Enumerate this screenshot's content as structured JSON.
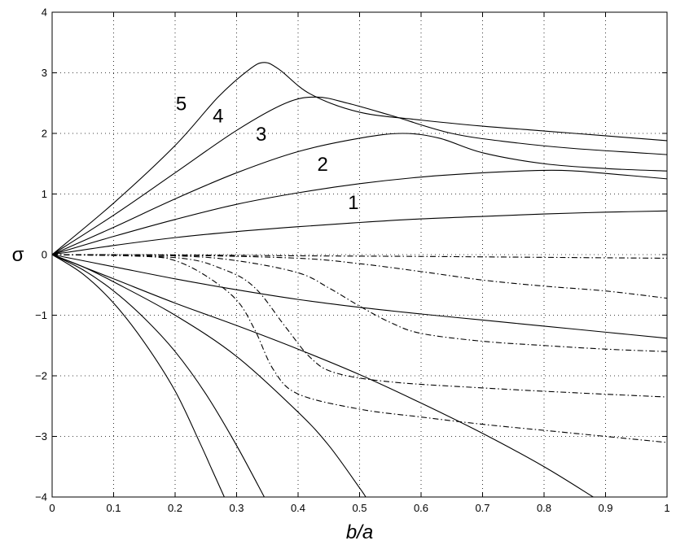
{
  "chart_data": {
    "type": "line",
    "xlabel": "b/a",
    "ylabel": "σ",
    "xlim": [
      0,
      1
    ],
    "ylim": [
      -4,
      4
    ],
    "xticks": [
      0,
      0.1,
      0.2,
      0.3,
      0.4,
      0.5,
      0.6,
      0.7,
      0.8,
      0.9,
      1
    ],
    "xtick_labels": [
      "0",
      "0.1",
      "0.2",
      "0.3",
      "0.4",
      "0.5",
      "0.6",
      "0.7",
      "0.8",
      "0.9",
      "1"
    ],
    "yticks": [
      -4,
      -3,
      -2,
      -1,
      0,
      1,
      2,
      3,
      4
    ],
    "ytick_labels": [
      "−4",
      "−3",
      "−2",
      "−1",
      "0",
      "1",
      "2",
      "3",
      "4"
    ],
    "grid": true,
    "series": [
      {
        "style": "solid",
        "points": [
          [
            0,
            0
          ],
          [
            0.1,
            0.15
          ],
          [
            0.2,
            0.28
          ],
          [
            0.3,
            0.38
          ],
          [
            0.4,
            0.46
          ],
          [
            0.5,
            0.53
          ],
          [
            0.6,
            0.59
          ],
          [
            0.7,
            0.63
          ],
          [
            0.8,
            0.67
          ],
          [
            0.9,
            0.7
          ],
          [
            1,
            0.72
          ]
        ]
      },
      {
        "style": "solid",
        "points": [
          [
            0,
            0
          ],
          [
            0.1,
            0.3
          ],
          [
            0.2,
            0.58
          ],
          [
            0.3,
            0.83
          ],
          [
            0.4,
            1.02
          ],
          [
            0.5,
            1.17
          ],
          [
            0.6,
            1.28
          ],
          [
            0.7,
            1.35
          ],
          [
            0.8,
            1.39
          ],
          [
            0.85,
            1.38
          ],
          [
            0.9,
            1.34
          ],
          [
            1,
            1.25
          ]
        ]
      },
      {
        "style": "solid",
        "points": [
          [
            0,
            0
          ],
          [
            0.1,
            0.45
          ],
          [
            0.2,
            0.92
          ],
          [
            0.3,
            1.35
          ],
          [
            0.4,
            1.7
          ],
          [
            0.5,
            1.92
          ],
          [
            0.57,
            2.0
          ],
          [
            0.63,
            1.92
          ],
          [
            0.7,
            1.68
          ],
          [
            0.8,
            1.5
          ],
          [
            0.9,
            1.42
          ],
          [
            1,
            1.38
          ]
        ]
      },
      {
        "style": "solid",
        "points": [
          [
            0,
            0
          ],
          [
            0.1,
            0.65
          ],
          [
            0.2,
            1.35
          ],
          [
            0.3,
            2.05
          ],
          [
            0.38,
            2.5
          ],
          [
            0.43,
            2.6
          ],
          [
            0.48,
            2.5
          ],
          [
            0.55,
            2.3
          ],
          [
            0.65,
            2.0
          ],
          [
            0.75,
            1.85
          ],
          [
            0.85,
            1.75
          ],
          [
            1,
            1.65
          ]
        ]
      },
      {
        "style": "solid",
        "points": [
          [
            0,
            0
          ],
          [
            0.1,
            0.85
          ],
          [
            0.2,
            1.8
          ],
          [
            0.27,
            2.6
          ],
          [
            0.32,
            3.05
          ],
          [
            0.345,
            3.17
          ],
          [
            0.37,
            3.05
          ],
          [
            0.42,
            2.65
          ],
          [
            0.5,
            2.35
          ],
          [
            0.6,
            2.22
          ],
          [
            0.7,
            2.12
          ],
          [
            0.8,
            2.04
          ],
          [
            0.9,
            1.96
          ],
          [
            1,
            1.88
          ]
        ]
      },
      {
        "style": "solid",
        "points": [
          [
            0,
            0
          ],
          [
            0.1,
            -0.2
          ],
          [
            0.2,
            -0.4
          ],
          [
            0.3,
            -0.58
          ],
          [
            0.4,
            -0.74
          ],
          [
            0.5,
            -0.87
          ],
          [
            0.6,
            -0.98
          ],
          [
            0.7,
            -1.08
          ],
          [
            0.8,
            -1.18
          ],
          [
            0.9,
            -1.28
          ],
          [
            1,
            -1.38
          ]
        ]
      },
      {
        "style": "solid",
        "points": [
          [
            0,
            0
          ],
          [
            0.1,
            -0.4
          ],
          [
            0.2,
            -0.8
          ],
          [
            0.3,
            -1.17
          ],
          [
            0.4,
            -1.56
          ],
          [
            0.5,
            -1.98
          ],
          [
            0.6,
            -2.45
          ],
          [
            0.7,
            -2.95
          ],
          [
            0.8,
            -3.5
          ],
          [
            0.88,
            -4.0
          ]
        ]
      },
      {
        "style": "solid",
        "points": [
          [
            0,
            0
          ],
          [
            0.05,
            -0.2
          ],
          [
            0.1,
            -0.45
          ],
          [
            0.2,
            -1.0
          ],
          [
            0.3,
            -1.68
          ],
          [
            0.4,
            -2.6
          ],
          [
            0.45,
            -3.15
          ],
          [
            0.5,
            -3.85
          ],
          [
            0.51,
            -4.0
          ]
        ]
      },
      {
        "style": "solid",
        "points": [
          [
            0,
            0
          ],
          [
            0.05,
            -0.25
          ],
          [
            0.1,
            -0.6
          ],
          [
            0.15,
            -1.05
          ],
          [
            0.2,
            -1.6
          ],
          [
            0.25,
            -2.3
          ],
          [
            0.3,
            -3.15
          ],
          [
            0.345,
            -4.0
          ]
        ]
      },
      {
        "style": "solid",
        "points": [
          [
            0,
            0
          ],
          [
            0.05,
            -0.32
          ],
          [
            0.1,
            -0.8
          ],
          [
            0.15,
            -1.45
          ],
          [
            0.2,
            -2.25
          ],
          [
            0.24,
            -3.1
          ],
          [
            0.26,
            -3.55
          ],
          [
            0.28,
            -4.0
          ]
        ]
      },
      {
        "style": "dashdot",
        "points": [
          [
            0,
            0
          ],
          [
            0.2,
            -0.005
          ],
          [
            0.4,
            -0.02
          ],
          [
            0.6,
            -0.03
          ],
          [
            0.8,
            -0.045
          ],
          [
            1,
            -0.06
          ]
        ]
      },
      {
        "style": "dashdot",
        "points": [
          [
            0,
            0
          ],
          [
            0.2,
            -0.01
          ],
          [
            0.4,
            -0.06
          ],
          [
            0.5,
            -0.15
          ],
          [
            0.6,
            -0.28
          ],
          [
            0.7,
            -0.42
          ],
          [
            0.8,
            -0.52
          ],
          [
            0.9,
            -0.6
          ],
          [
            1,
            -0.72
          ]
        ]
      },
      {
        "style": "dashdot",
        "points": [
          [
            0,
            0
          ],
          [
            0.2,
            -0.02
          ],
          [
            0.3,
            -0.1
          ],
          [
            0.4,
            -0.3
          ],
          [
            0.45,
            -0.55
          ],
          [
            0.5,
            -0.85
          ],
          [
            0.55,
            -1.12
          ],
          [
            0.6,
            -1.3
          ],
          [
            0.7,
            -1.43
          ],
          [
            0.8,
            -1.5
          ],
          [
            0.9,
            -1.56
          ],
          [
            1,
            -1.6
          ]
        ]
      },
      {
        "style": "dashdot",
        "points": [
          [
            0,
            0
          ],
          [
            0.2,
            -0.05
          ],
          [
            0.28,
            -0.25
          ],
          [
            0.33,
            -0.55
          ],
          [
            0.38,
            -1.2
          ],
          [
            0.42,
            -1.7
          ],
          [
            0.46,
            -1.95
          ],
          [
            0.55,
            -2.1
          ],
          [
            0.7,
            -2.2
          ],
          [
            0.85,
            -2.28
          ],
          [
            1,
            -2.35
          ]
        ]
      },
      {
        "style": "dashdot",
        "points": [
          [
            0,
            0
          ],
          [
            0.15,
            -0.03
          ],
          [
            0.2,
            -0.1
          ],
          [
            0.25,
            -0.35
          ],
          [
            0.3,
            -0.75
          ],
          [
            0.33,
            -1.25
          ],
          [
            0.36,
            -1.9
          ],
          [
            0.4,
            -2.3
          ],
          [
            0.5,
            -2.55
          ],
          [
            0.6,
            -2.68
          ],
          [
            0.7,
            -2.8
          ],
          [
            0.8,
            -2.9
          ],
          [
            0.9,
            -3.0
          ],
          [
            1,
            -3.1
          ]
        ]
      }
    ],
    "annotations": [
      {
        "text": "1",
        "x": 0.49,
        "y": 0.75
      },
      {
        "text": "2",
        "x": 0.44,
        "y": 1.38
      },
      {
        "text": "3",
        "x": 0.34,
        "y": 1.88
      },
      {
        "text": "4",
        "x": 0.27,
        "y": 2.18
      },
      {
        "text": "5",
        "x": 0.21,
        "y": 2.38
      }
    ]
  }
}
